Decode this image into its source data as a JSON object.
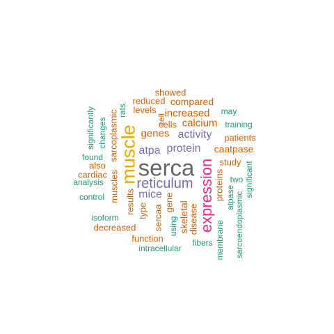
{
  "colors": {
    "gray": "#666666",
    "teal": "#1b9e77",
    "orange": "#d95f02",
    "purple": "#7570b3",
    "magenta": "#e7298a",
    "gold": "#e6ab02"
  },
  "words": [
    {
      "text": "serca",
      "color": "gray"
    },
    {
      "text": "muscle",
      "color": "gold"
    },
    {
      "text": "expression",
      "color": "magenta"
    },
    {
      "text": "reticulum",
      "color": "purple"
    },
    {
      "text": "protein",
      "color": "purple"
    },
    {
      "text": "activity",
      "color": "purple"
    },
    {
      "text": "atpa",
      "color": "purple"
    },
    {
      "text": "mice",
      "color": "purple"
    },
    {
      "text": "calcium",
      "color": "orange"
    },
    {
      "text": "increased",
      "color": "orange"
    },
    {
      "text": "genes",
      "color": "orange"
    },
    {
      "text": "compared",
      "color": "orange"
    },
    {
      "text": "showed",
      "color": "orange"
    },
    {
      "text": "reduced",
      "color": "orange"
    },
    {
      "text": "levels",
      "color": "orange"
    },
    {
      "text": "cells",
      "color": "orange"
    },
    {
      "text": "caatpase",
      "color": "orange"
    },
    {
      "text": "patients",
      "color": "orange"
    },
    {
      "text": "study",
      "color": "orange"
    },
    {
      "text": "also",
      "color": "orange"
    },
    {
      "text": "cardiac",
      "color": "orange"
    },
    {
      "text": "decreased",
      "color": "orange"
    },
    {
      "text": "function",
      "color": "orange"
    },
    {
      "text": "sarcoplasmic",
      "color": "orange"
    },
    {
      "text": "muscles",
      "color": "orange"
    },
    {
      "text": "results",
      "color": "orange"
    },
    {
      "text": "type",
      "color": "orange"
    },
    {
      "text": "sercaa",
      "color": "orange"
    },
    {
      "text": "gene",
      "color": "orange"
    },
    {
      "text": "skeletal",
      "color": "orange"
    },
    {
      "text": "disease",
      "color": "orange"
    },
    {
      "text": "proteins",
      "color": "orange"
    },
    {
      "text": "cell",
      "color": "orange"
    },
    {
      "text": "may",
      "color": "teal"
    },
    {
      "text": "training",
      "color": "teal"
    },
    {
      "text": "found",
      "color": "teal"
    },
    {
      "text": "analysis",
      "color": "teal"
    },
    {
      "text": "control",
      "color": "teal"
    },
    {
      "text": "isoform",
      "color": "teal"
    },
    {
      "text": "intracellular",
      "color": "teal"
    },
    {
      "text": "fibers",
      "color": "teal"
    },
    {
      "text": "significantly",
      "color": "teal"
    },
    {
      "text": "changes",
      "color": "teal"
    },
    {
      "text": "rats",
      "color": "teal"
    },
    {
      "text": "using",
      "color": "teal"
    },
    {
      "text": "two",
      "color": "teal"
    },
    {
      "text": "atpase",
      "color": "teal"
    },
    {
      "text": "sarcoendoplasmic",
      "color": "teal"
    },
    {
      "text": "significant",
      "color": "teal"
    },
    {
      "text": "membrane",
      "color": "teal"
    }
  ]
}
